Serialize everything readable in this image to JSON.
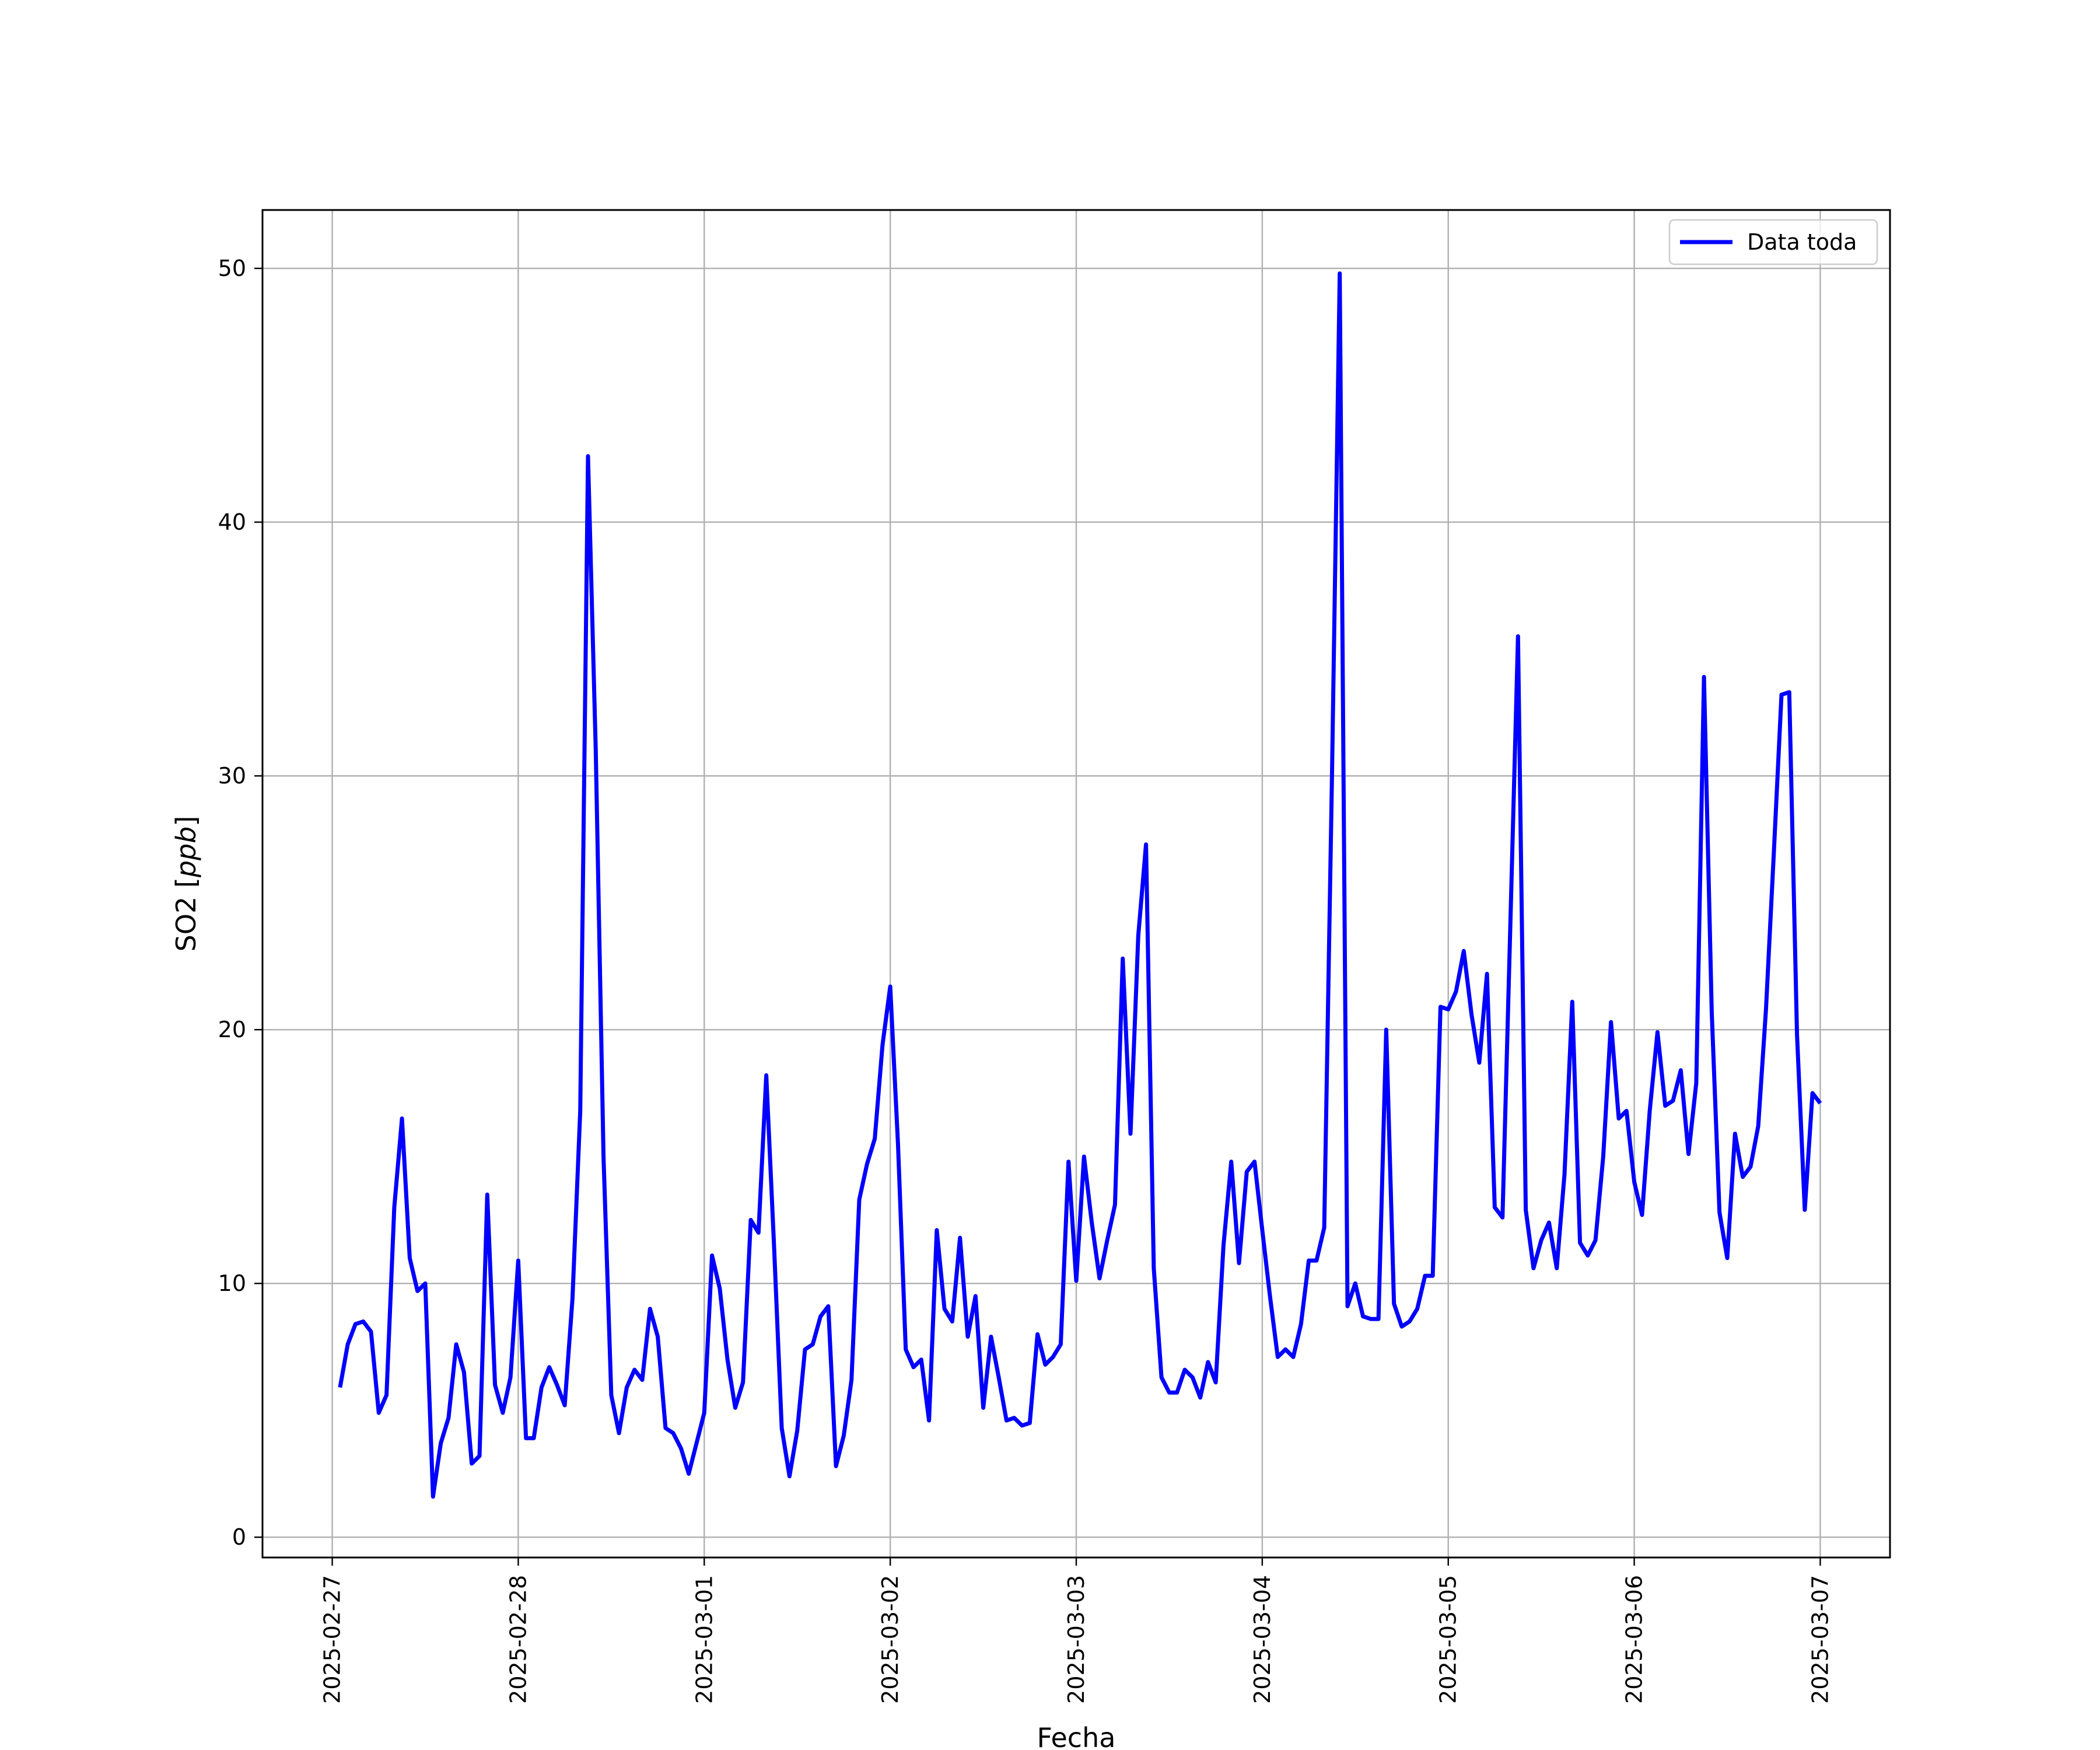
{
  "chart_data": {
    "type": "line",
    "title": "",
    "xlabel": "Fecha",
    "ylabel": "SO2 [ppb]",
    "ylabel_parts": {
      "text": "SO2 [",
      "unit": "ppb",
      "close": "]"
    },
    "xlim": [
      "2025-02-26 15:00",
      "2025-03-07 09:00"
    ],
    "ylim": [
      -0.8,
      52.3
    ],
    "x_ticks": [
      "2025-02-27",
      "2025-02-28",
      "2025-03-01",
      "2025-03-02",
      "2025-03-03",
      "2025-03-04",
      "2025-03-05",
      "2025-03-06",
      "2025-03-07"
    ],
    "y_ticks": [
      0,
      10,
      20,
      30,
      40,
      50
    ],
    "grid": true,
    "legend_position": "top-right",
    "color": "#0000ff",
    "series": [
      {
        "name": "Data toda",
        "color": "#0000ff",
        "x": [
          "2025-02-27 01:00",
          "2025-02-27 02:00",
          "2025-02-27 03:00",
          "2025-02-27 04:00",
          "2025-02-27 05:00",
          "2025-02-27 06:00",
          "2025-02-27 07:00",
          "2025-02-27 08:00",
          "2025-02-27 09:00",
          "2025-02-27 10:00",
          "2025-02-27 11:00",
          "2025-02-27 12:00",
          "2025-02-27 13:00",
          "2025-02-27 14:00",
          "2025-02-27 15:00",
          "2025-02-27 16:00",
          "2025-02-27 17:00",
          "2025-02-27 18:00",
          "2025-02-27 19:00",
          "2025-02-27 20:00",
          "2025-02-27 21:00",
          "2025-02-27 22:00",
          "2025-02-27 23:00",
          "2025-02-28 00:00",
          "2025-02-28 01:00",
          "2025-02-28 02:00",
          "2025-02-28 03:00",
          "2025-02-28 04:00",
          "2025-02-28 05:00",
          "2025-02-28 06:00",
          "2025-02-28 07:00",
          "2025-02-28 08:00",
          "2025-02-28 09:00",
          "2025-02-28 10:00",
          "2025-02-28 11:00",
          "2025-02-28 12:00",
          "2025-02-28 13:00",
          "2025-02-28 14:00",
          "2025-02-28 15:00",
          "2025-02-28 16:00",
          "2025-02-28 17:00",
          "2025-02-28 18:00",
          "2025-02-28 19:00",
          "2025-02-28 20:00",
          "2025-02-28 21:00",
          "2025-02-28 22:00",
          "2025-02-28 23:00",
          "2025-03-01 00:00",
          "2025-03-01 01:00",
          "2025-03-01 02:00",
          "2025-03-01 03:00",
          "2025-03-01 04:00",
          "2025-03-01 05:00",
          "2025-03-01 06:00",
          "2025-03-01 07:00",
          "2025-03-01 08:00",
          "2025-03-01 09:00",
          "2025-03-01 10:00",
          "2025-03-01 11:00",
          "2025-03-01 12:00",
          "2025-03-01 13:00",
          "2025-03-01 14:00",
          "2025-03-01 15:00",
          "2025-03-01 16:00",
          "2025-03-01 17:00",
          "2025-03-01 18:00",
          "2025-03-01 19:00",
          "2025-03-01 20:00",
          "2025-03-01 21:00",
          "2025-03-01 22:00",
          "2025-03-01 23:00",
          "2025-03-02 00:00",
          "2025-03-02 01:00",
          "2025-03-02 02:00",
          "2025-03-02 03:00",
          "2025-03-02 04:00",
          "2025-03-02 05:00",
          "2025-03-02 06:00",
          "2025-03-02 07:00",
          "2025-03-02 08:00",
          "2025-03-02 09:00",
          "2025-03-02 10:00",
          "2025-03-02 11:00",
          "2025-03-02 12:00",
          "2025-03-02 13:00",
          "2025-03-02 14:00",
          "2025-03-02 15:00",
          "2025-03-02 16:00",
          "2025-03-02 17:00",
          "2025-03-02 18:00",
          "2025-03-02 19:00",
          "2025-03-02 20:00",
          "2025-03-02 21:00",
          "2025-03-02 22:00",
          "2025-03-02 23:00",
          "2025-03-03 00:00",
          "2025-03-03 01:00",
          "2025-03-03 02:00",
          "2025-03-03 03:00",
          "2025-03-03 04:00",
          "2025-03-03 05:00",
          "2025-03-03 06:00",
          "2025-03-03 07:00",
          "2025-03-03 08:00",
          "2025-03-03 09:00",
          "2025-03-03 10:00",
          "2025-03-03 11:00",
          "2025-03-03 12:00",
          "2025-03-03 13:00",
          "2025-03-03 14:00",
          "2025-03-03 15:00",
          "2025-03-03 16:00",
          "2025-03-03 17:00",
          "2025-03-03 18:00",
          "2025-03-03 19:00",
          "2025-03-03 20:00",
          "2025-03-03 21:00",
          "2025-03-03 22:00",
          "2025-03-03 23:00",
          "2025-03-04 00:00",
          "2025-03-04 01:00",
          "2025-03-04 02:00",
          "2025-03-04 03:00",
          "2025-03-04 04:00",
          "2025-03-04 05:00",
          "2025-03-04 06:00",
          "2025-03-04 07:00",
          "2025-03-04 08:00",
          "2025-03-04 09:00",
          "2025-03-04 10:00",
          "2025-03-04 11:00",
          "2025-03-04 12:00",
          "2025-03-04 13:00",
          "2025-03-04 14:00",
          "2025-03-04 15:00",
          "2025-03-04 16:00",
          "2025-03-04 17:00",
          "2025-03-04 18:00",
          "2025-03-04 19:00",
          "2025-03-04 20:00",
          "2025-03-04 21:00",
          "2025-03-04 22:00",
          "2025-03-04 23:00",
          "2025-03-05 00:00",
          "2025-03-05 01:00",
          "2025-03-05 02:00",
          "2025-03-05 03:00",
          "2025-03-05 04:00",
          "2025-03-05 05:00",
          "2025-03-05 06:00",
          "2025-03-05 07:00",
          "2025-03-05 08:00",
          "2025-03-05 09:00",
          "2025-03-05 10:00",
          "2025-03-05 11:00",
          "2025-03-05 12:00",
          "2025-03-05 13:00",
          "2025-03-05 14:00",
          "2025-03-05 15:00",
          "2025-03-05 16:00",
          "2025-03-05 17:00",
          "2025-03-05 18:00",
          "2025-03-05 19:00",
          "2025-03-05 20:00",
          "2025-03-05 21:00",
          "2025-03-05 22:00",
          "2025-03-05 23:00",
          "2025-03-06 00:00",
          "2025-03-06 01:00",
          "2025-03-06 02:00",
          "2025-03-06 03:00",
          "2025-03-06 04:00",
          "2025-03-06 05:00",
          "2025-03-06 06:00",
          "2025-03-06 07:00",
          "2025-03-06 08:00",
          "2025-03-06 09:00",
          "2025-03-06 10:00",
          "2025-03-06 11:00",
          "2025-03-06 12:00",
          "2025-03-06 13:00",
          "2025-03-06 14:00",
          "2025-03-06 15:00",
          "2025-03-06 16:00",
          "2025-03-06 17:00",
          "2025-03-06 18:00",
          "2025-03-06 19:00",
          "2025-03-06 20:00",
          "2025-03-06 21:00",
          "2025-03-06 22:00",
          "2025-03-06 23:00",
          "2025-03-07 00:00"
        ],
        "y": [
          5.9,
          7.6,
          8.4,
          8.5,
          8.1,
          4.9,
          5.6,
          13.0,
          16.5,
          11.0,
          9.7,
          10.0,
          1.6,
          3.7,
          4.7,
          7.6,
          6.5,
          2.9,
          3.2,
          13.5,
          6.0,
          4.9,
          6.3,
          10.9,
          3.9,
          3.9,
          5.9,
          6.7,
          6.0,
          5.2,
          9.4,
          16.8,
          42.6,
          31.0,
          15.0,
          5.6,
          4.1,
          5.9,
          6.6,
          6.2,
          9.0,
          7.9,
          4.3,
          4.1,
          3.5,
          2.5,
          3.7,
          4.9,
          11.1,
          9.8,
          7.0,
          5.1,
          6.1,
          12.5,
          12.0,
          18.2,
          11.5,
          4.3,
          2.4,
          4.2,
          7.4,
          7.6,
          8.7,
          9.1,
          2.8,
          4.0,
          6.2,
          13.3,
          14.7,
          15.7,
          19.4,
          21.7,
          15.5,
          7.4,
          6.7,
          7.0,
          4.6,
          12.1,
          9.0,
          8.5,
          11.8,
          7.9,
          9.5,
          5.1,
          7.9,
          6.3,
          4.6,
          4.7,
          4.4,
          4.5,
          8.0,
          6.8,
          7.1,
          7.6,
          14.8,
          10.1,
          15.0,
          12.4,
          10.2,
          11.7,
          13.1,
          22.8,
          15.9,
          23.7,
          27.3,
          10.6,
          6.3,
          5.7,
          5.7,
          6.6,
          6.3,
          5.5,
          6.9,
          6.1,
          11.5,
          14.8,
          10.8,
          14.4,
          14.8,
          12.1,
          9.5,
          7.1,
          7.4,
          7.1,
          8.4,
          10.9,
          10.9,
          12.2,
          30.0,
          49.8,
          9.1,
          10.0,
          8.7,
          8.6,
          8.6,
          20.0,
          9.2,
          8.3,
          8.5,
          9.0,
          10.3,
          10.3,
          20.9,
          20.8,
          21.5,
          23.1,
          20.6,
          18.7,
          22.2,
          13.0,
          12.6,
          24.0,
          35.5,
          12.9,
          10.6,
          11.7,
          12.4,
          10.6,
          14.3,
          21.1,
          11.6,
          11.1,
          11.7,
          15.0,
          20.3,
          16.5,
          16.8,
          14.0,
          12.7,
          16.8,
          19.9,
          17.0,
          17.2,
          18.4,
          15.1,
          17.9,
          33.9,
          20.7,
          12.8,
          11.0,
          15.9,
          14.2,
          14.6,
          16.2,
          20.8,
          26.9,
          33.2,
          33.3,
          19.8,
          12.9,
          17.5,
          17.1
        ]
      }
    ]
  }
}
